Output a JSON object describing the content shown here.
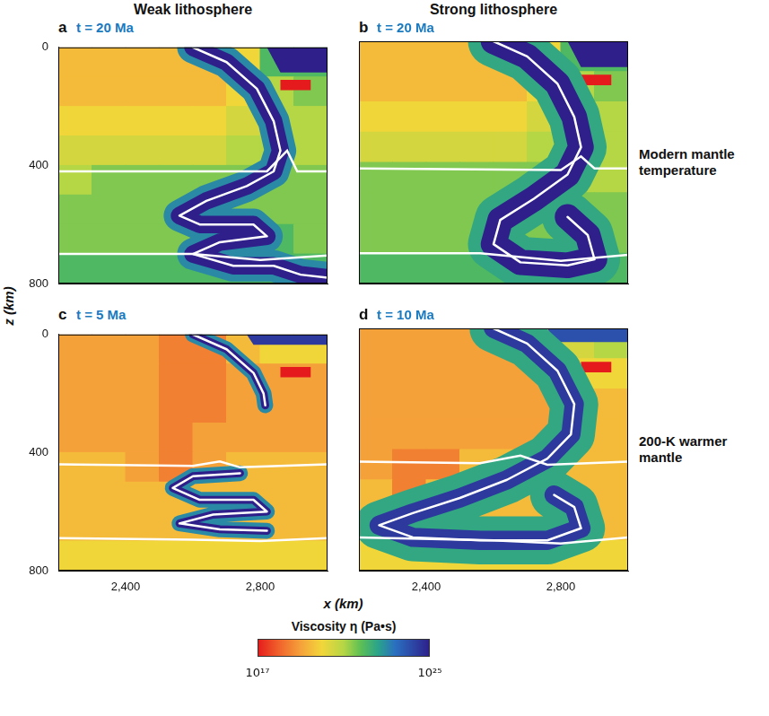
{
  "columns": [
    "Weak lithosphere",
    "Strong lithosphere"
  ],
  "rows": [
    "Modern mantle temperature",
    "200-K warmer mantle"
  ],
  "x_label": "x (km)",
  "y_label": "z (km)",
  "colorbar": {
    "title": "Viscosity η (Pa•s)",
    "log": true,
    "range": [
      1e+17,
      1e+25
    ],
    "ticks": [
      {
        "value": 1e+17,
        "label": "10¹⁷"
      },
      {
        "value": 1e+25,
        "label": "10²⁵"
      }
    ]
  },
  "chart_data": [
    {
      "type": "heatmap",
      "panel": "a",
      "title": "t = 20 Ma",
      "xlim": [
        2200,
        3000
      ],
      "ylim": [
        800,
        0
      ],
      "xticks": [
        {
          "value": 2400,
          "label": "2,400"
        },
        {
          "value": 2800,
          "label": "2,800"
        }
      ],
      "yticks": [
        0,
        400,
        800
      ],
      "tick_labels": "y",
      "grid": false,
      "cell_x": [
        2200,
        2300,
        2400,
        2500,
        2600,
        2700,
        2800,
        2900,
        3000
      ],
      "cell_z": [
        0,
        100,
        200,
        300,
        400,
        500,
        600,
        700,
        800
      ],
      "cells": [
        [
          3e+19,
          3e+19,
          3e+19,
          3e+19,
          3e+19,
          1e+20,
          1e+22,
          1e+22
        ],
        [
          3e+19,
          3e+19,
          3e+19,
          3e+19,
          3e+19,
          1e+20,
          1e+21,
          3e+21
        ],
        [
          1e+20,
          1e+20,
          1e+20,
          1e+20,
          1e+20,
          3e+20,
          1e+21,
          1e+21
        ],
        [
          3e+20,
          3e+20,
          3e+20,
          3e+20,
          3e+20,
          1e+21,
          1e+21,
          1e+21
        ],
        [
          1e+21,
          3e+21,
          3e+21,
          3e+21,
          3e+21,
          3e+21,
          3e+21,
          3e+21
        ],
        [
          3e+21,
          3e+21,
          3e+21,
          3e+21,
          3e+21,
          3e+21,
          3e+21,
          3e+21
        ],
        [
          3e+21,
          3e+21,
          3e+21,
          3e+21,
          1e+22,
          1e+22,
          1e+22,
          3e+21
        ],
        [
          1e+22,
          1e+22,
          1e+22,
          1e+22,
          1e+22,
          1e+22,
          1e+22,
          1e+22
        ]
      ],
      "regions": [
        {
          "viscosity": 1e+25,
          "points": [
            [
              2820,
              0
            ],
            [
              3000,
              0
            ],
            [
              3000,
              85
            ],
            [
              2860,
              85
            ]
          ]
        },
        {
          "viscosity": 1e+17,
          "points": [
            [
              2860,
              110
            ],
            [
              2950,
              110
            ],
            [
              2950,
              145
            ],
            [
              2860,
              145
            ]
          ]
        }
      ],
      "slab": {
        "layers": [
          {
            "thickness_km": 100,
            "viscosity": 1e+23
          },
          {
            "thickness_km": 55,
            "viscosity": 1e+25
          }
        ],
        "paths": [
          [
            [
              2600,
              0
            ],
            [
              2700,
              50
            ],
            [
              2790,
              140
            ],
            [
              2840,
              250
            ],
            [
              2860,
              350
            ],
            [
              2840,
              420
            ],
            [
              2760,
              470
            ],
            [
              2640,
              520
            ],
            [
              2560,
              570
            ],
            [
              2620,
              600
            ],
            [
              2780,
              600
            ],
            [
              2820,
              640
            ],
            [
              2680,
              660
            ],
            [
              2600,
              700
            ],
            [
              2720,
              740
            ],
            [
              2840,
              740
            ],
            [
              2920,
              770
            ],
            [
              3000,
              780
            ]
          ]
        ]
      },
      "boundaries": [
        [
          [
            2200,
            420
          ],
          [
            2820,
            420
          ],
          [
            2880,
            350
          ],
          [
            2910,
            420
          ],
          [
            3000,
            420
          ]
        ],
        [
          [
            2200,
            700
          ],
          [
            2600,
            700
          ],
          [
            2800,
            720
          ],
          [
            3000,
            705
          ]
        ]
      ]
    },
    {
      "type": "heatmap",
      "panel": "b",
      "title": "t = 20 Ma",
      "xlim": [
        2200,
        3000
      ],
      "ylim": [
        800,
        0
      ],
      "xticks": [
        {
          "value": 2400,
          "label": "2,400"
        },
        {
          "value": 2800,
          "label": "2,800"
        }
      ],
      "yticks": [
        0,
        400,
        800
      ],
      "tick_labels": false,
      "grid": false,
      "cell_x": [
        2200,
        2300,
        2400,
        2500,
        2600,
        2700,
        2800,
        2900,
        3000
      ],
      "cell_z": [
        0,
        100,
        200,
        300,
        400,
        500,
        600,
        700,
        800
      ],
      "cells": [
        [
          3e+19,
          3e+19,
          3e+19,
          3e+19,
          3e+19,
          1e+20,
          1e+22,
          1e+22
        ],
        [
          3e+19,
          3e+19,
          3e+19,
          3e+19,
          3e+19,
          1e+20,
          1e+21,
          3e+21
        ],
        [
          1e+20,
          1e+20,
          1e+20,
          1e+20,
          1e+20,
          3e+20,
          1e+21,
          1e+21
        ],
        [
          3e+20,
          3e+20,
          3e+20,
          3e+20,
          3e+20,
          1e+21,
          1e+21,
          1e+21
        ],
        [
          3e+21,
          3e+21,
          3e+21,
          3e+21,
          3e+21,
          3e+21,
          1e+21,
          1e+21
        ],
        [
          3e+21,
          3e+21,
          3e+21,
          3e+21,
          3e+21,
          3e+21,
          3e+21,
          3e+21
        ],
        [
          3e+21,
          3e+21,
          3e+21,
          3e+21,
          3e+21,
          3e+21,
          3e+21,
          3e+21
        ],
        [
          1e+22,
          1e+22,
          1e+22,
          1e+22,
          1e+22,
          1e+22,
          1e+22,
          1e+22
        ]
      ],
      "regions": [
        {
          "viscosity": 1e+25,
          "points": [
            [
              2820,
              0
            ],
            [
              3000,
              0
            ],
            [
              3000,
              85
            ],
            [
              2860,
              85
            ]
          ]
        },
        {
          "viscosity": 1e+17,
          "points": [
            [
              2860,
              110
            ],
            [
              2950,
              110
            ],
            [
              2950,
              145
            ],
            [
              2860,
              145
            ]
          ]
        }
      ],
      "slab": {
        "layers": [
          {
            "thickness_km": 160,
            "viscosity": 3e+22
          },
          {
            "thickness_km": 80,
            "viscosity": 1e+25
          }
        ],
        "paths": [
          [
            [
              2600,
              0
            ],
            [
              2700,
              50
            ],
            [
              2790,
              140
            ],
            [
              2840,
              250
            ],
            [
              2860,
              350
            ],
            [
              2820,
              440
            ],
            [
              2720,
              520
            ],
            [
              2620,
              590
            ],
            [
              2600,
              670
            ],
            [
              2680,
              730
            ],
            [
              2820,
              740
            ],
            [
              2900,
              720
            ],
            [
              2880,
              640
            ],
            [
              2820,
              580
            ]
          ]
        ]
      },
      "boundaries": [
        [
          [
            2200,
            420
          ],
          [
            2800,
            425
          ],
          [
            2860,
            380
          ],
          [
            2900,
            420
          ],
          [
            3000,
            420
          ]
        ],
        [
          [
            2200,
            700
          ],
          [
            2560,
            700
          ],
          [
            2800,
            725
          ],
          [
            3000,
            705
          ]
        ]
      ]
    },
    {
      "type": "heatmap",
      "panel": "c",
      "title": "t = 5 Ma",
      "xlim": [
        2200,
        3000
      ],
      "ylim": [
        800,
        0
      ],
      "xticks": [
        {
          "value": 2400,
          "label": "2,400"
        },
        {
          "value": 2800,
          "label": "2,800"
        }
      ],
      "yticks": [
        0,
        400,
        800
      ],
      "tick_labels": true,
      "grid": false,
      "cell_x": [
        2200,
        2300,
        2400,
        2500,
        2600,
        2700,
        2800,
        2900,
        3000
      ],
      "cell_z": [
        0,
        100,
        200,
        300,
        400,
        500,
        600,
        700,
        800
      ],
      "cells": [
        [
          1e+19,
          1e+19,
          1e+19,
          3e+18,
          3e+18,
          3e+19,
          1e+20,
          1e+20
        ],
        [
          1e+19,
          1e+19,
          1e+19,
          3e+18,
          3e+18,
          1e+19,
          1e+19,
          1e+19
        ],
        [
          1e+19,
          1e+19,
          1e+19,
          3e+18,
          3e+18,
          1e+19,
          1e+19,
          1e+19
        ],
        [
          1e+19,
          1e+19,
          1e+19,
          3e+18,
          1e+19,
          1e+19,
          1e+19,
          1e+19
        ],
        [
          3e+19,
          3e+19,
          1e+19,
          3e+18,
          1e+19,
          3e+19,
          3e+19,
          3e+19
        ],
        [
          3e+19,
          3e+19,
          3e+19,
          3e+19,
          3e+19,
          3e+19,
          3e+19,
          3e+19
        ],
        [
          3e+19,
          3e+19,
          3e+19,
          3e+19,
          3e+19,
          3e+19,
          3e+19,
          3e+19
        ],
        [
          1e+20,
          1e+20,
          1e+20,
          1e+20,
          1e+20,
          1e+20,
          1e+20,
          1e+20
        ]
      ],
      "regions": [
        {
          "viscosity": 3e+24,
          "points": [
            [
              2760,
              0
            ],
            [
              3000,
              0
            ],
            [
              3000,
              35
            ],
            [
              2780,
              35
            ]
          ]
        },
        {
          "viscosity": 1e+17,
          "points": [
            [
              2860,
              110
            ],
            [
              2950,
              110
            ],
            [
              2950,
              145
            ],
            [
              2860,
              145
            ]
          ]
        }
      ],
      "slab": {
        "layers": [
          {
            "thickness_km": 50,
            "viscosity": 1e+23
          },
          {
            "thickness_km": 25,
            "viscosity": 1e+25
          }
        ],
        "paths": [
          [
            [
              2600,
              0
            ],
            [
              2700,
              50
            ],
            [
              2780,
              130
            ],
            [
              2810,
              200
            ],
            [
              2815,
              240
            ]
          ],
          [
            [
              2740,
              470
            ],
            [
              2600,
              480
            ],
            [
              2540,
              520
            ],
            [
              2620,
              560
            ],
            [
              2780,
              560
            ],
            [
              2820,
              600
            ],
            [
              2660,
              610
            ],
            [
              2560,
              640
            ],
            [
              2680,
              660
            ],
            [
              2820,
              665
            ]
          ]
        ]
      },
      "boundaries": [
        [
          [
            2200,
            440
          ],
          [
            2600,
            445
          ],
          [
            2680,
            430
          ],
          [
            2740,
            450
          ],
          [
            3000,
            440
          ]
        ],
        [
          [
            2200,
            690
          ],
          [
            2600,
            695
          ],
          [
            2800,
            700
          ],
          [
            3000,
            690
          ]
        ]
      ]
    },
    {
      "type": "heatmap",
      "panel": "d",
      "title": "t = 10 Ma",
      "xlim": [
        2200,
        3000
      ],
      "ylim": [
        800,
        0
      ],
      "xticks": [
        {
          "value": 2400,
          "label": "2,400"
        },
        {
          "value": 2800,
          "label": "2,800"
        }
      ],
      "yticks": [
        0,
        400,
        800
      ],
      "tick_labels": "x",
      "grid": false,
      "cell_x": [
        2200,
        2300,
        2400,
        2500,
        2600,
        2700,
        2800,
        2900,
        3000
      ],
      "cell_z": [
        0,
        100,
        200,
        300,
        400,
        500,
        600,
        700,
        800
      ],
      "cells": [
        [
          1e+19,
          1e+19,
          1e+19,
          1e+19,
          1e+19,
          3e+19,
          3e+20,
          1e+21
        ],
        [
          1e+19,
          1e+19,
          1e+19,
          1e+19,
          1e+19,
          1e+19,
          1e+20,
          1e+20
        ],
        [
          1e+19,
          1e+19,
          1e+19,
          1e+19,
          1e+19,
          1e+19,
          3e+19,
          3e+19
        ],
        [
          1e+19,
          1e+19,
          1e+19,
          1e+19,
          1e+19,
          1e+19,
          3e+19,
          3e+19
        ],
        [
          1e+19,
          3e+18,
          3e+18,
          3e+19,
          3e+19,
          3e+19,
          3e+19,
          3e+19
        ],
        [
          3e+19,
          3e+18,
          3e+19,
          3e+19,
          3e+19,
          3e+19,
          3e+19,
          3e+19
        ],
        [
          3e+19,
          3e+19,
          3e+19,
          3e+19,
          3e+19,
          3e+19,
          3e+19,
          3e+19
        ],
        [
          1e+20,
          1e+20,
          1e+20,
          1e+20,
          1e+20,
          1e+20,
          1e+20,
          1e+20
        ]
      ],
      "regions": [
        {
          "viscosity": 1e+24,
          "points": [
            [
              2760,
              0
            ],
            [
              3000,
              0
            ],
            [
              3000,
              45
            ],
            [
              2780,
              45
            ]
          ]
        },
        {
          "viscosity": 1e+17,
          "points": [
            [
              2860,
              110
            ],
            [
              2950,
              110
            ],
            [
              2950,
              145
            ],
            [
              2860,
              145
            ]
          ]
        }
      ],
      "slab": {
        "layers": [
          {
            "thickness_km": 150,
            "viscosity": 3e+22
          },
          {
            "thickness_km": 60,
            "viscosity": 3e+24
          }
        ],
        "paths": [
          [
            [
              2600,
              0
            ],
            [
              2700,
              50
            ],
            [
              2790,
              140
            ],
            [
              2840,
              250
            ],
            [
              2830,
              350
            ],
            [
              2760,
              430
            ],
            [
              2640,
              500
            ],
            [
              2500,
              560
            ],
            [
              2360,
              610
            ],
            [
              2260,
              650
            ],
            [
              2360,
              690
            ],
            [
              2560,
              700
            ],
            [
              2760,
              700
            ],
            [
              2860,
              660
            ],
            [
              2840,
              590
            ],
            [
              2780,
              550
            ]
          ]
        ]
      },
      "boundaries": [
        [
          [
            2200,
            440
          ],
          [
            2560,
            445
          ],
          [
            2680,
            420
          ],
          [
            2760,
            450
          ],
          [
            3000,
            440
          ]
        ],
        [
          [
            2200,
            690
          ],
          [
            2600,
            700
          ],
          [
            2800,
            710
          ],
          [
            3000,
            690
          ]
        ]
      ]
    }
  ]
}
